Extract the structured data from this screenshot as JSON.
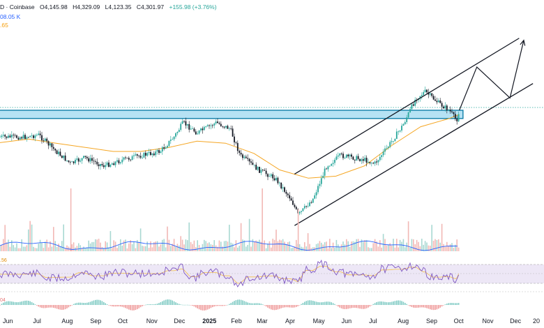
{
  "legend": {
    "symbol_fragment": "D · Coinbase",
    "open": "O4,145.98",
    "high": "H4,329.09",
    "low": "L4,123.35",
    "close": "C4,301.97",
    "change": "+155.98 (+3.76%)",
    "volume_fragment": "08.05 K",
    "ma_fragment": ".65"
  },
  "indicators": {
    "rsi_fragment": ".56",
    "macd_fragment": "04"
  },
  "colors": {
    "up": "#26a69a",
    "down": "#131722",
    "zone_fill": "#9dd8f0",
    "zone_stroke": "#0f7fa8",
    "ma": "#f5a623",
    "volume_ma": "#2962ff",
    "rsi": "#7e57c2",
    "rsi_signal": "#f5c04a",
    "rsi_band": "#ede7f6"
  },
  "chart_data": [
    {
      "type": "candlestick",
      "pane": "price",
      "symbol_fragment": "D · Coinbase",
      "x_ticks": [
        "Jun",
        "Jul",
        "Aug",
        "Sep",
        "Oct",
        "Nov",
        "Dec",
        "2025",
        "Feb",
        "Mar",
        "Apr",
        "May",
        "Jun",
        "Jul",
        "Aug",
        "Sep",
        "Oct",
        "Nov",
        "Dec",
        "20"
      ],
      "ohlc_last": {
        "open": 4145.98,
        "high": 4329.09,
        "low": 4123.35,
        "close": 4301.97,
        "change": 155.98,
        "change_pct": 3.76
      },
      "close_trend": [
        [
          "2024-05-15",
          0.53
        ],
        [
          "2024-06-15",
          0.53
        ],
        [
          "2024-07-01",
          0.52
        ],
        [
          "2024-07-20",
          0.6
        ],
        [
          "2024-08-05",
          0.66
        ],
        [
          "2024-08-20",
          0.63
        ],
        [
          "2024-09-10",
          0.67
        ],
        [
          "2024-10-01",
          0.64
        ],
        [
          "2024-10-20",
          0.62
        ],
        [
          "2024-11-10",
          0.6
        ],
        [
          "2024-11-25",
          0.53
        ],
        [
          "2024-12-05",
          0.46
        ],
        [
          "2024-12-20",
          0.51
        ],
        [
          "2025-01-10",
          0.46
        ],
        [
          "2025-01-25",
          0.49
        ],
        [
          "2025-02-05",
          0.62
        ],
        [
          "2025-02-25",
          0.69
        ],
        [
          "2025-03-15",
          0.73
        ],
        [
          "2025-04-01",
          0.83
        ],
        [
          "2025-04-09",
          0.91
        ],
        [
          "2025-04-25",
          0.83
        ],
        [
          "2025-05-10",
          0.67
        ],
        [
          "2025-05-25",
          0.62
        ],
        [
          "2025-06-20",
          0.64
        ],
        [
          "2025-07-01",
          0.66
        ],
        [
          "2025-07-15",
          0.58
        ],
        [
          "2025-08-01",
          0.47
        ],
        [
          "2025-08-15",
          0.34
        ],
        [
          "2025-08-25",
          0.31
        ],
        [
          "2025-09-10",
          0.37
        ],
        [
          "2025-09-20",
          0.4
        ],
        [
          "2025-09-28",
          0.45
        ],
        [
          "2025-10-01",
          0.4
        ]
      ],
      "close_trend_note": "relative position 0=top 1=bottom of price pane",
      "support_resistance_zone": {
        "from": "2024-05-01",
        "to": "2025-10-05"
      },
      "moving_average": [
        [
          "2024-05-15",
          0.56
        ],
        [
          "2024-06-20",
          0.54
        ],
        [
          "2024-07-20",
          0.56
        ],
        [
          "2024-08-20",
          0.58
        ],
        [
          "2024-09-20",
          0.6
        ],
        [
          "2024-10-20",
          0.6
        ],
        [
          "2024-11-20",
          0.58
        ],
        [
          "2024-12-20",
          0.55
        ],
        [
          "2025-01-20",
          0.56
        ],
        [
          "2025-02-20",
          0.61
        ],
        [
          "2025-03-20",
          0.69
        ],
        [
          "2025-04-20",
          0.73
        ],
        [
          "2025-05-20",
          0.72
        ],
        [
          "2025-06-20",
          0.67
        ],
        [
          "2025-07-20",
          0.57
        ],
        [
          "2025-08-20",
          0.48
        ],
        [
          "2025-09-20",
          0.44
        ],
        [
          "2025-10-01",
          0.42
        ]
      ],
      "channel_lower": [
        [
          "2025-04-05",
          0.96
        ],
        [
          "2025-12-20",
          0.27
        ]
      ],
      "channel_upper": [
        [
          "2025-04-05",
          0.71
        ],
        [
          "2025-12-05",
          0.05
        ]
      ],
      "projection": [
        [
          "2025-10-01",
          0.4
        ],
        [
          "2025-10-20",
          0.19
        ],
        [
          "2025-11-25",
          0.34
        ],
        [
          "2025-12-10",
          0.06
        ]
      ]
    },
    {
      "type": "bar",
      "pane": "volume",
      "series_fragment": "08.05 K",
      "volume_ma_trend": "oscillating",
      "grid": false
    },
    {
      "type": "line",
      "pane": "rsi",
      "label_fragment": ".56",
      "ylim": [
        0,
        100
      ],
      "bands": [
        30,
        70
      ]
    },
    {
      "type": "bar",
      "pane": "macd",
      "label_fragment": "04"
    }
  ]
}
